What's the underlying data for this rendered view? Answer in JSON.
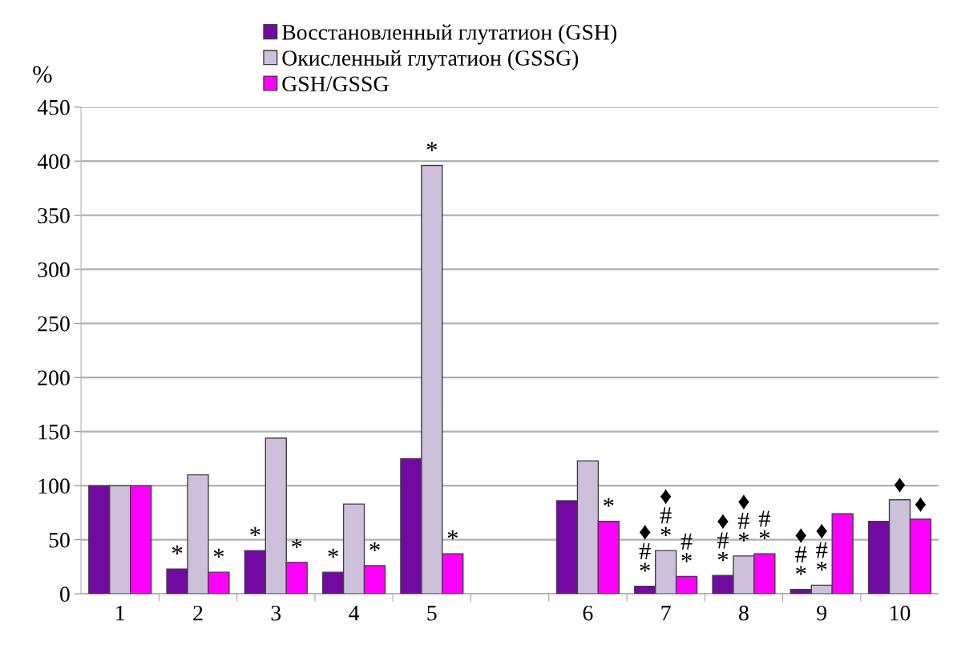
{
  "chart_data": {
    "type": "bar",
    "ylabel": "%",
    "categories": [
      "1",
      "2",
      "3",
      "4",
      "5",
      null,
      "6",
      "7",
      "8",
      "9",
      "10"
    ],
    "series": [
      {
        "name": "Восстановленный глутатион (GSH)",
        "color": "#7209a0",
        "values": [
          100,
          23,
          40,
          20,
          125,
          null,
          86,
          7,
          17,
          4,
          67
        ],
        "value_labels": [
          null,
          "*",
          "*",
          "*",
          null,
          null,
          null,
          "♦\n#\n*",
          "♦\n#\n*",
          "♦\n#\n*",
          null
        ]
      },
      {
        "name": "Окисленный глутатион (GSSG)",
        "color": "#ccc0da",
        "values": [
          100,
          110,
          144,
          83,
          396,
          null,
          123,
          40,
          35,
          8,
          87
        ],
        "value_labels": [
          null,
          null,
          null,
          null,
          "*",
          null,
          null,
          "♦\n#\n*",
          "♦\n#\n*",
          "♦\n#\n*",
          "♦"
        ]
      },
      {
        "name": "GSH/GSSG",
        "color": "#ff00ff",
        "values": [
          100,
          20,
          29,
          26,
          37,
          null,
          67,
          16,
          37,
          74,
          69
        ],
        "value_labels": [
          null,
          "*",
          "*",
          "*",
          "*",
          null,
          "*",
          "#\n*",
          "#\n*",
          null,
          "♦"
        ]
      }
    ],
    "ylim": [
      0,
      450
    ],
    "yticks": [
      0,
      50,
      100,
      150,
      200,
      250,
      300,
      350,
      400,
      450
    ],
    "grid": "y",
    "legend": "top"
  }
}
